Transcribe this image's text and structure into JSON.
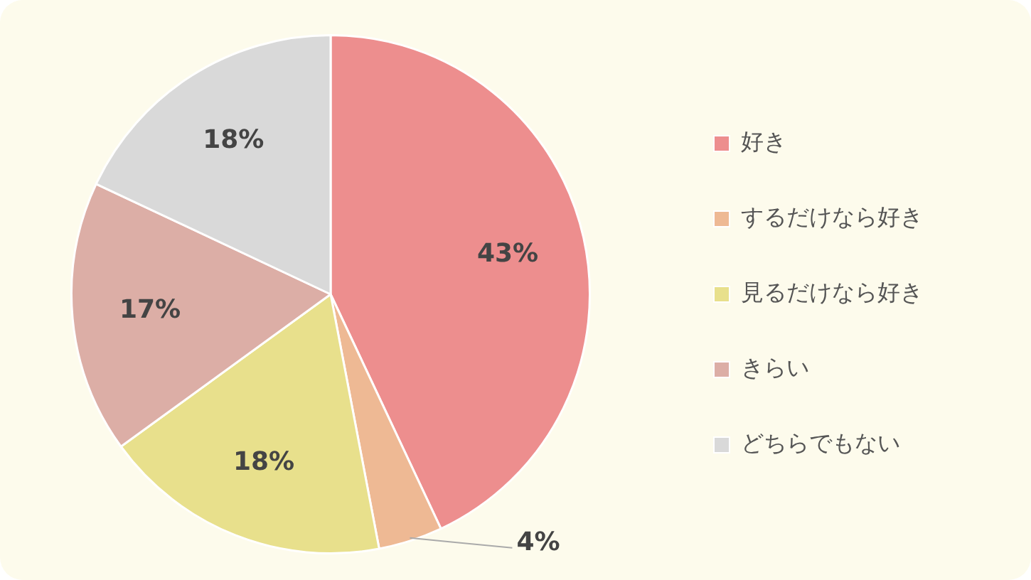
{
  "chart_data": {
    "type": "pie",
    "categories": [
      "好き",
      "するだけなら好き",
      "見るだけなら好き",
      "きらい",
      "どちらでもない"
    ],
    "values": [
      43,
      4,
      18,
      17,
      18
    ],
    "colors": [
      "#ed8e8e",
      "#eeb994",
      "#e8e08c",
      "#dcaea6",
      "#d9d9d9"
    ],
    "value_labels": [
      "43%",
      "4%",
      "18%",
      "17%",
      "18%"
    ],
    "legend": "right"
  }
}
